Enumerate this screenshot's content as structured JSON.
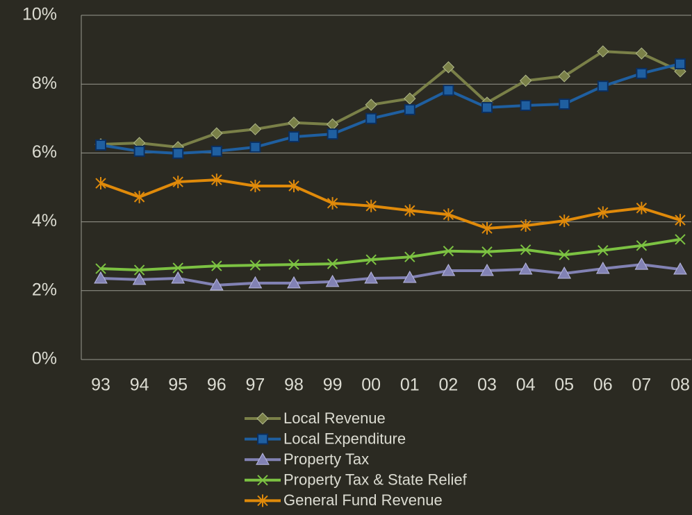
{
  "chart_data": {
    "type": "line",
    "categories": [
      "93",
      "94",
      "95",
      "96",
      "97",
      "98",
      "99",
      "00",
      "01",
      "02",
      "03",
      "04",
      "05",
      "06",
      "07",
      "08"
    ],
    "series": [
      {
        "name": "Local Revenue",
        "color": "#7a8048",
        "marker": "diamond",
        "values": [
          6.25,
          6.29,
          6.17,
          6.57,
          6.69,
          6.88,
          6.83,
          7.4,
          7.58,
          8.49,
          7.46,
          8.1,
          8.23,
          8.95,
          8.89,
          8.37
        ]
      },
      {
        "name": "Local Expenditure",
        "color": "#1f5fa0",
        "marker": "square",
        "values": [
          6.23,
          6.05,
          5.99,
          6.05,
          6.17,
          6.47,
          6.55,
          7.0,
          7.26,
          7.82,
          7.32,
          7.38,
          7.42,
          7.94,
          8.31,
          8.59
        ]
      },
      {
        "name": "Property Tax",
        "color": "#8282b4",
        "marker": "triangle",
        "values": [
          2.36,
          2.32,
          2.36,
          2.16,
          2.22,
          2.22,
          2.26,
          2.36,
          2.38,
          2.58,
          2.58,
          2.62,
          2.5,
          2.64,
          2.76,
          2.62
        ]
      },
      {
        "name": "Property Tax & State Relief",
        "color": "#7cc242",
        "marker": "x",
        "values": [
          2.64,
          2.6,
          2.66,
          2.72,
          2.74,
          2.76,
          2.78,
          2.9,
          2.98,
          3.15,
          3.13,
          3.19,
          3.04,
          3.17,
          3.31,
          3.49
        ]
      },
      {
        "name": "General Fund Revenue",
        "color": "#e08a0a",
        "marker": "star",
        "values": [
          5.12,
          4.72,
          5.16,
          5.22,
          5.04,
          5.04,
          4.54,
          4.46,
          4.33,
          4.21,
          3.81,
          3.89,
          4.03,
          4.27,
          4.4,
          4.05
        ]
      }
    ],
    "ylim": [
      0,
      10
    ],
    "yticks": [
      {
        "value": 0,
        "label": "0%"
      },
      {
        "value": 2,
        "label": "2%"
      },
      {
        "value": 4,
        "label": "4%"
      },
      {
        "value": 6,
        "label": "6%"
      },
      {
        "value": 8,
        "label": "8%"
      },
      {
        "value": 10,
        "label": "10%"
      }
    ],
    "grid": true,
    "legend": "bottom"
  }
}
